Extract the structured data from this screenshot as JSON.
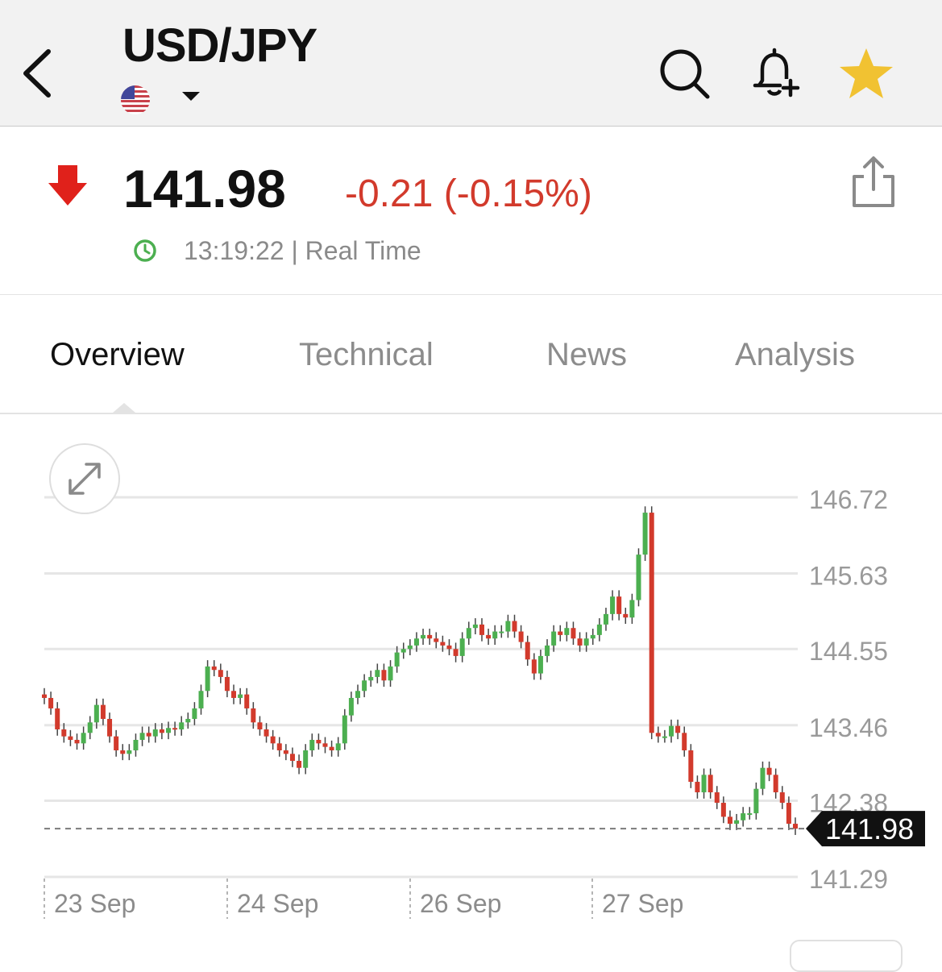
{
  "header": {
    "pair": "USD/JPY",
    "icons": [
      "back-icon",
      "us-flag-icon",
      "dropdown-caret-icon",
      "search-icon",
      "alert-bell-add-icon",
      "star-icon"
    ]
  },
  "quote": {
    "price": "141.98",
    "change": "-0.21 (-0.15%)",
    "time": "13:19:22 | Real Time",
    "colors": {
      "down": "#d23a2c",
      "up": "#4caf50",
      "clock": "#4caf50",
      "star": "#f1c232"
    }
  },
  "tabs": [
    {
      "label": "Overview",
      "active": true
    },
    {
      "label": "Technical",
      "active": false
    },
    {
      "label": "News",
      "active": false
    },
    {
      "label": "Analysis",
      "active": false
    }
  ],
  "chart_data": {
    "type": "candlestick",
    "y_ticks": [
      "146.72",
      "145.63",
      "144.55",
      "143.46",
      "142.38",
      "141.29"
    ],
    "ylim": [
      141.29,
      146.72
    ],
    "x_labels": [
      "23 Sep",
      "24 Sep",
      "26 Sep",
      "27 Sep"
    ],
    "current_price_label": "141.98",
    "current_price": 141.98,
    "grid": true,
    "colors": {
      "up": "#4caf50",
      "down": "#d23a2c",
      "grid": "#e6e6e6"
    },
    "closes": [
      143.85,
      143.7,
      143.4,
      143.3,
      143.25,
      143.2,
      143.35,
      143.5,
      143.75,
      143.55,
      143.3,
      143.1,
      143.05,
      143.1,
      143.25,
      143.35,
      143.3,
      143.4,
      143.35,
      143.42,
      143.4,
      143.5,
      143.55,
      143.7,
      143.95,
      144.3,
      144.25,
      144.15,
      143.95,
      143.85,
      143.9,
      143.7,
      143.5,
      143.4,
      143.3,
      143.2,
      143.1,
      143.05,
      142.95,
      142.85,
      143.1,
      143.25,
      143.2,
      143.15,
      143.1,
      143.2,
      143.6,
      143.85,
      143.95,
      144.1,
      144.15,
      144.25,
      144.1,
      144.3,
      144.5,
      144.55,
      144.6,
      144.7,
      144.75,
      144.7,
      144.65,
      144.6,
      144.55,
      144.45,
      144.7,
      144.85,
      144.9,
      144.75,
      144.7,
      144.8,
      144.8,
      144.95,
      144.8,
      144.65,
      144.4,
      144.2,
      144.45,
      144.6,
      144.8,
      144.75,
      144.85,
      144.7,
      144.6,
      144.7,
      144.75,
      144.9,
      145.05,
      145.3,
      145.05,
      145.0,
      145.25,
      145.9,
      146.5,
      143.35,
      143.3,
      143.3,
      143.45,
      143.35,
      143.1,
      142.65,
      142.5,
      142.75,
      142.5,
      142.35,
      142.15,
      142.05,
      142.1,
      142.2,
      142.2,
      142.55,
      142.85,
      142.75,
      142.5,
      142.35,
      142.05,
      141.98
    ]
  }
}
